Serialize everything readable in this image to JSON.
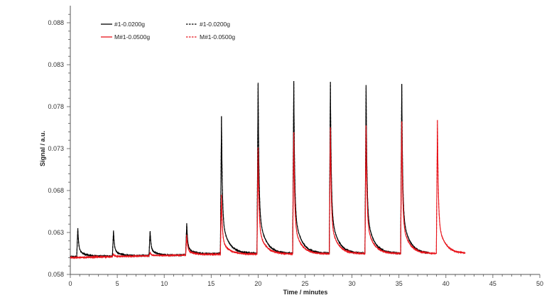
{
  "chart_data": {
    "type": "line",
    "title": "",
    "xlabel": "Time / minutes",
    "ylabel": "Signal / a.u.",
    "xlim": [
      0,
      50
    ],
    "ylim": [
      0.058,
      0.089
    ],
    "xticks": [
      0,
      5,
      10,
      15,
      20,
      25,
      30,
      35,
      40,
      45,
      50
    ],
    "yticks": [
      0.058,
      0.063,
      0.068,
      0.073,
      0.078,
      0.083,
      0.088
    ],
    "ytick_labels": [
      "0.058",
      "0.063",
      "0.068",
      "0.073",
      "0.078",
      "0.083",
      "0.088"
    ],
    "legend_position": "top-left",
    "series": [
      {
        "name": "#1-0.0200g",
        "color": "#000000",
        "style": "solid",
        "x_end": 38.2,
        "baseline": [
          [
            0,
            0.0601
          ],
          [
            12,
            0.0603
          ],
          [
            16,
            0.0605
          ],
          [
            38.2,
            0.0605
          ]
        ],
        "peaks": [
          [
            0.8,
            0.0635
          ],
          [
            4.6,
            0.0632
          ],
          [
            8.5,
            0.0632
          ],
          [
            12.4,
            0.0641
          ],
          [
            16.1,
            0.0768
          ],
          [
            20.0,
            0.0808
          ],
          [
            23.8,
            0.081
          ],
          [
            27.7,
            0.0809
          ],
          [
            31.5,
            0.0806
          ],
          [
            35.3,
            0.0807
          ]
        ]
      },
      {
        "name": "#1-0.0200g",
        "color": "#000000",
        "style": "dashed",
        "x_end": 38.2,
        "baseline": [
          [
            0,
            0.0601
          ],
          [
            12,
            0.0603
          ],
          [
            16,
            0.0605
          ],
          [
            38.2,
            0.0605
          ]
        ],
        "peaks": [
          [
            0.8,
            0.0635
          ],
          [
            4.6,
            0.0632
          ],
          [
            8.5,
            0.0632
          ],
          [
            12.4,
            0.0641
          ],
          [
            16.1,
            0.0768
          ],
          [
            20.0,
            0.0808
          ],
          [
            23.8,
            0.081
          ],
          [
            27.7,
            0.0809
          ],
          [
            31.5,
            0.0806
          ],
          [
            35.3,
            0.0807
          ]
        ]
      },
      {
        "name": "M#1-0.0500g",
        "color": "#e8141b",
        "style": "solid",
        "x_end": 42.1,
        "baseline": [
          [
            0,
            0.06
          ],
          [
            8,
            0.0602
          ],
          [
            16,
            0.0604
          ],
          [
            42.1,
            0.0605
          ]
        ],
        "peaks": [
          [
            4.6,
            0.0604
          ],
          [
            8.5,
            0.0606
          ],
          [
            12.4,
            0.0627
          ],
          [
            16.1,
            0.0675
          ],
          [
            20.0,
            0.0731
          ],
          [
            23.8,
            0.0749
          ],
          [
            27.7,
            0.0755
          ],
          [
            31.5,
            0.0758
          ],
          [
            35.3,
            0.0762
          ],
          [
            39.1,
            0.0764
          ]
        ]
      },
      {
        "name": "M#1-0.0500g",
        "color": "#e8141b",
        "style": "dashed",
        "x_end": 42.1,
        "baseline": [
          [
            0,
            0.06
          ],
          [
            8,
            0.0602
          ],
          [
            16,
            0.0604
          ],
          [
            42.1,
            0.0605
          ]
        ],
        "peaks": [
          [
            4.6,
            0.0604
          ],
          [
            8.5,
            0.0606
          ],
          [
            12.4,
            0.0627
          ],
          [
            16.1,
            0.0675
          ],
          [
            20.0,
            0.0731
          ],
          [
            23.8,
            0.0749
          ],
          [
            27.7,
            0.0755
          ],
          [
            31.5,
            0.0758
          ],
          [
            35.3,
            0.0762
          ],
          [
            39.1,
            0.0764
          ]
        ]
      }
    ]
  }
}
